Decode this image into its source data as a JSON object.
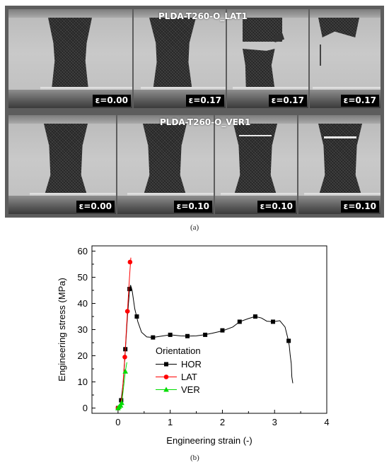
{
  "figure": {
    "panel_a": {
      "caption": "(a)",
      "rows": [
        {
          "title": "PLDA-T260-O_LAT1",
          "labels": [
            "ε=0.00",
            "ε=0.17",
            "ε=0.17",
            "ε=0.17"
          ]
        },
        {
          "title": "PLDA-T260-O_VER1",
          "labels": [
            "ε=0.00",
            "ε=0.10",
            "ε=0.10",
            "ε=0.10"
          ]
        }
      ]
    },
    "panel_b": {
      "caption": "(b)"
    }
  },
  "chart_data": {
    "type": "line",
    "xlabel": "Engineering strain (-)",
    "ylabel": "Engineering stress (MPa)",
    "xlim": [
      -0.5,
      4
    ],
    "ylim": [
      -2,
      62
    ],
    "xticks": [
      0,
      1,
      2,
      3,
      4
    ],
    "yticks": [
      0,
      10,
      20,
      30,
      40,
      50,
      60
    ],
    "legend": {
      "title": "Orientation",
      "placement": "center"
    },
    "grid": false,
    "series": [
      {
        "name": "HOR",
        "color": "#000000",
        "marker": "square",
        "line": [
          [
            0,
            0
          ],
          [
            0.03,
            1
          ],
          [
            0.06,
            3
          ],
          [
            0.1,
            10
          ],
          [
            0.14,
            22
          ],
          [
            0.18,
            35
          ],
          [
            0.22,
            45
          ],
          [
            0.24,
            47
          ],
          [
            0.27,
            45
          ],
          [
            0.32,
            38
          ],
          [
            0.38,
            33
          ],
          [
            0.45,
            29
          ],
          [
            0.55,
            27.2
          ],
          [
            0.67,
            27
          ],
          [
            0.8,
            27.4
          ],
          [
            1.0,
            28
          ],
          [
            1.2,
            27.6
          ],
          [
            1.33,
            27.5
          ],
          [
            1.5,
            27.6
          ],
          [
            1.65,
            28
          ],
          [
            1.8,
            28.6
          ],
          [
            2.0,
            29.5
          ],
          [
            2.2,
            31
          ],
          [
            2.33,
            33
          ],
          [
            2.5,
            34.2
          ],
          [
            2.63,
            35
          ],
          [
            2.75,
            34.4
          ],
          [
            2.85,
            33.2
          ],
          [
            2.97,
            33
          ],
          [
            3.1,
            33.4
          ],
          [
            3.2,
            31
          ],
          [
            3.25,
            27
          ],
          [
            3.28,
            24
          ],
          [
            3.3,
            20
          ],
          [
            3.32,
            17
          ],
          [
            3.33,
            12
          ],
          [
            3.35,
            9.5
          ]
        ],
        "markers": [
          [
            0,
            0
          ],
          [
            0.06,
            3
          ],
          [
            0.14,
            22.5
          ],
          [
            0.22,
            45.5
          ],
          [
            0.36,
            35
          ],
          [
            0.67,
            27
          ],
          [
            1.0,
            28
          ],
          [
            1.33,
            27.5
          ],
          [
            1.67,
            28
          ],
          [
            2.0,
            29.7
          ],
          [
            2.33,
            33
          ],
          [
            2.63,
            35
          ],
          [
            2.97,
            33
          ],
          [
            3.27,
            25.7
          ]
        ]
      },
      {
        "name": "LAT",
        "color": "#ff0000",
        "marker": "circle",
        "line": [
          [
            0,
            0
          ],
          [
            0.04,
            0.8
          ],
          [
            0.08,
            5
          ],
          [
            0.13,
            19.5
          ],
          [
            0.18,
            37
          ],
          [
            0.22,
            50
          ],
          [
            0.245,
            57.5
          ]
        ],
        "markers": [
          [
            0,
            0
          ],
          [
            0.13,
            19.5
          ],
          [
            0.18,
            37
          ],
          [
            0.23,
            55.8
          ]
        ]
      },
      {
        "name": "VER",
        "color": "#00dd00",
        "marker": "triangle",
        "line": [
          [
            0,
            0
          ],
          [
            0.03,
            0.5
          ],
          [
            0.07,
            2
          ],
          [
            0.1,
            7
          ],
          [
            0.14,
            14
          ],
          [
            0.17,
            17.5
          ]
        ],
        "markers": [
          [
            0,
            0
          ],
          [
            0.02,
            0.5
          ],
          [
            0.05,
            1
          ],
          [
            0.07,
            2
          ],
          [
            0.14,
            14
          ]
        ]
      }
    ]
  }
}
